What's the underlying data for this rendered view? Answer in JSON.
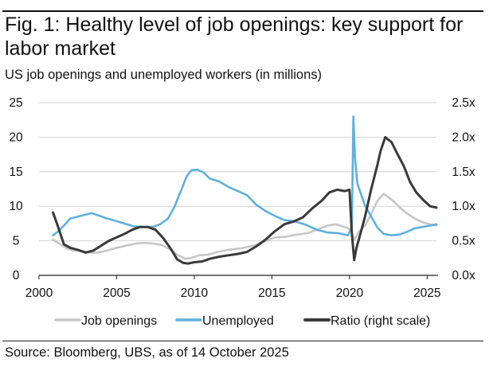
{
  "title": "Fig. 1: Healthy level of job openings: key support for labor market",
  "subtitle": "US job openings and unemployed workers (in millions)",
  "source": "Source: Bloomberg, UBS, as of 14 October 2025",
  "colors": {
    "job_openings": "#c6c6c6",
    "unemployed": "#5fb0dc",
    "ratio": "#3a3a3a",
    "gridline": "#d4d4d4",
    "axis": "#222222"
  },
  "chart_data": {
    "type": "line",
    "x_axis": {
      "range": [
        2000,
        2025.6
      ],
      "ticks": [
        2000,
        2005,
        2010,
        2015,
        2020,
        2025
      ],
      "tick_labels": [
        "2000",
        "2005",
        "2010",
        "2015",
        "2020",
        "2025"
      ]
    },
    "y_left": {
      "range": [
        0,
        25
      ],
      "ticks": [
        0,
        5,
        10,
        15,
        20,
        25
      ],
      "tick_labels": [
        "0",
        "5",
        "10",
        "15",
        "20",
        "25"
      ]
    },
    "y_right": {
      "range": [
        0,
        2.5
      ],
      "ticks": [
        0,
        0.5,
        1.0,
        1.5,
        2.0,
        2.5
      ],
      "tick_labels": [
        "0.0x",
        "0.5x",
        "1.0x",
        "1.5x",
        "2.0x",
        "2.5x"
      ]
    },
    "grid": "horizontal",
    "legend_position": "bottom",
    "series": [
      {
        "name": "Job openings",
        "axis": "left",
        "color_key": "job_openings",
        "x": [
          2000.9,
          2001.3,
          2001.8,
          2002.2,
          2002.8,
          2003.3,
          2003.8,
          2004.4,
          2005.0,
          2005.6,
          2006.2,
          2006.8,
          2007.4,
          2007.9,
          2008.4,
          2008.9,
          2009.4,
          2009.8,
          2010.3,
          2010.9,
          2011.5,
          2012.2,
          2013.0,
          2013.8,
          2014.5,
          2015.2,
          2015.9,
          2016.6,
          2017.3,
          2018.0,
          2018.6,
          2019.1,
          2019.7,
          2020.1,
          2020.3,
          2020.6,
          2021.0,
          2021.4,
          2021.8,
          2022.2,
          2022.5,
          2022.9,
          2023.3,
          2023.8,
          2024.3,
          2024.8,
          2025.2,
          2025.6
        ],
        "values": [
          5.2,
          4.6,
          3.9,
          3.6,
          3.5,
          3.3,
          3.3,
          3.6,
          4.0,
          4.3,
          4.6,
          4.7,
          4.6,
          4.4,
          3.8,
          3.0,
          2.4,
          2.5,
          2.9,
          3.0,
          3.4,
          3.7,
          3.9,
          4.3,
          4.9,
          5.5,
          5.6,
          5.9,
          6.1,
          6.7,
          7.2,
          7.4,
          7.0,
          6.6,
          5.1,
          6.3,
          7.2,
          8.9,
          10.8,
          11.8,
          11.3,
          10.6,
          9.7,
          8.8,
          8.1,
          7.6,
          7.4,
          7.2
        ]
      },
      {
        "name": "Unemployed",
        "axis": "left",
        "color_key": "unemployed",
        "x": [
          2000.9,
          2001.2,
          2001.6,
          2002.0,
          2002.5,
          2003.0,
          2003.4,
          2003.8,
          2004.3,
          2004.9,
          2005.5,
          2006.1,
          2006.7,
          2007.3,
          2007.8,
          2008.3,
          2008.7,
          2009.1,
          2009.5,
          2009.8,
          2010.2,
          2010.6,
          2011.0,
          2011.6,
          2012.2,
          2012.8,
          2013.4,
          2014.0,
          2014.6,
          2015.2,
          2015.8,
          2016.5,
          2017.2,
          2017.9,
          2018.6,
          2019.3,
          2019.9,
          2020.15,
          2020.25,
          2020.35,
          2020.5,
          2020.7,
          2021.0,
          2021.4,
          2021.8,
          2022.2,
          2022.7,
          2023.2,
          2023.7,
          2024.2,
          2024.7,
          2025.2,
          2025.6
        ],
        "values": [
          5.8,
          6.3,
          7.2,
          8.2,
          8.5,
          8.8,
          9.0,
          8.7,
          8.3,
          7.9,
          7.5,
          7.1,
          7.0,
          7.0,
          7.4,
          8.2,
          9.8,
          12.0,
          14.3,
          15.2,
          15.3,
          14.9,
          14.0,
          13.6,
          12.8,
          12.2,
          11.6,
          10.2,
          9.3,
          8.6,
          8.0,
          7.8,
          7.3,
          6.6,
          6.2,
          6.1,
          5.8,
          7.0,
          23.0,
          17.0,
          13.3,
          12.0,
          10.1,
          8.5,
          6.9,
          6.0,
          5.8,
          5.9,
          6.3,
          6.8,
          7.0,
          7.2,
          7.4
        ]
      },
      {
        "name": "Ratio (right scale)",
        "axis": "right",
        "color_key": "ratio",
        "x": [
          2000.9,
          2001.2,
          2001.6,
          2002.0,
          2002.5,
          2003.0,
          2003.5,
          2004.0,
          2004.5,
          2005.0,
          2005.5,
          2006.0,
          2006.5,
          2007.0,
          2007.5,
          2008.0,
          2008.5,
          2008.9,
          2009.3,
          2009.6,
          2010.0,
          2010.5,
          2011.0,
          2011.6,
          2012.2,
          2012.8,
          2013.4,
          2014.0,
          2014.6,
          2015.2,
          2015.8,
          2016.4,
          2017.0,
          2017.6,
          2018.2,
          2018.7,
          2019.2,
          2019.7,
          2020.0,
          2020.15,
          2020.3,
          2020.45,
          2020.7,
          2021.0,
          2021.4,
          2021.8,
          2022.0,
          2022.3,
          2022.7,
          2023.1,
          2023.5,
          2023.9,
          2024.3,
          2024.8,
          2025.2,
          2025.6
        ],
        "values": [
          0.91,
          0.72,
          0.45,
          0.4,
          0.37,
          0.33,
          0.36,
          0.43,
          0.5,
          0.55,
          0.6,
          0.66,
          0.7,
          0.7,
          0.66,
          0.54,
          0.38,
          0.23,
          0.18,
          0.17,
          0.19,
          0.2,
          0.24,
          0.27,
          0.29,
          0.31,
          0.34,
          0.42,
          0.52,
          0.64,
          0.74,
          0.78,
          0.84,
          0.97,
          1.08,
          1.2,
          1.24,
          1.22,
          1.24,
          0.6,
          0.22,
          0.4,
          0.6,
          0.85,
          1.25,
          1.6,
          1.8,
          2.0,
          1.93,
          1.75,
          1.58,
          1.35,
          1.2,
          1.08,
          1.0,
          0.98
        ]
      }
    ]
  }
}
